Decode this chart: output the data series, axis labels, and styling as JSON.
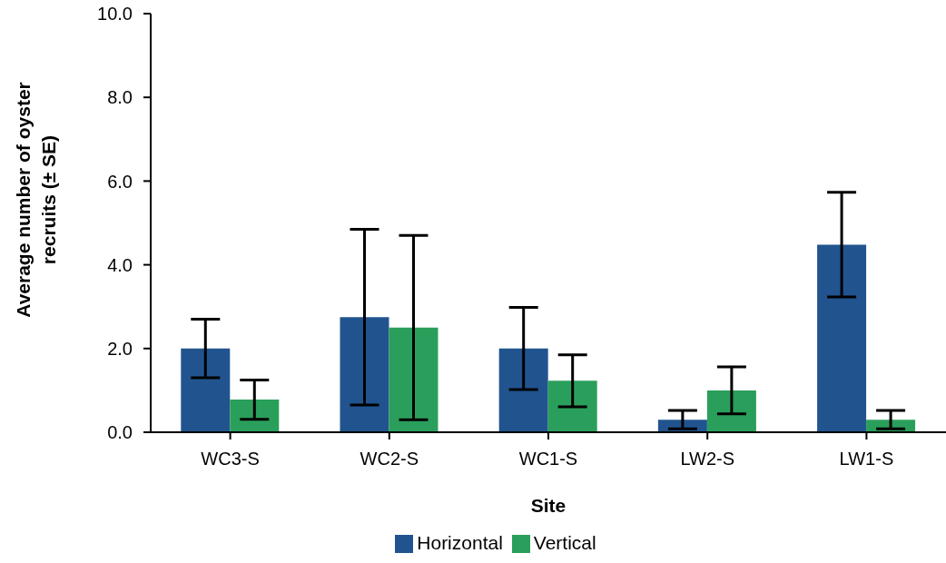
{
  "chart_data": {
    "type": "bar",
    "xlabel": "Site",
    "ylabel": "Average number of oyster recruits (± SE)",
    "categories": [
      "WC3-S",
      "WC2-S",
      "WC1-S",
      "LW2-S",
      "LW1-S"
    ],
    "series": [
      {
        "name": "Horizontal",
        "color": "#21548f",
        "values": [
          2.0,
          2.75,
          2.0,
          0.3,
          4.48
        ],
        "errors": [
          0.7,
          2.1,
          0.98,
          0.22,
          1.25
        ]
      },
      {
        "name": "Vertical",
        "color": "#2a9f5b",
        "values": [
          0.78,
          2.5,
          1.23,
          1.0,
          0.3
        ],
        "errors": [
          0.47,
          2.2,
          0.62,
          0.56,
          0.22
        ]
      }
    ],
    "ylim": [
      0,
      10
    ],
    "yticks": [
      {
        "value": 0,
        "label": "0.0"
      },
      {
        "value": 2,
        "label": "2.0"
      },
      {
        "value": 4,
        "label": "4.0"
      },
      {
        "value": 6,
        "label": "6.0"
      },
      {
        "value": 8,
        "label": "8.0"
      },
      {
        "value": 10,
        "label": "10.0"
      }
    ],
    "grid": false,
    "legend": "bottom"
  }
}
